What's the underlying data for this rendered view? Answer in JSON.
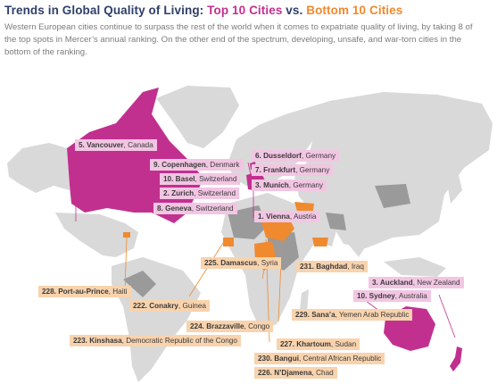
{
  "title": {
    "prefix": "Trends in Global Quality of Living: ",
    "top": "Top 10 Cities",
    "mid": " vs. ",
    "bottom": "Bottom 10 Cities"
  },
  "subtitle": "Western European cities continue to surpass the rest of the world when it comes to expatriate quality of living, by taking 8 of the top spots in Mercer’s annual ranking. On the other end of the spectrum, developing, unsafe, and war-torn cities in the bottom of the ranking.",
  "colors": {
    "top_accent": "#c2308f",
    "bottom_accent": "#ef8a2e",
    "top_label_bg": "#f2c6e3",
    "bottom_label_bg": "#f8d3ad",
    "land": "#d9d9d9"
  },
  "top_cities": [
    {
      "rank": "5.",
      "city": "Vancouver",
      "country": "Canada"
    },
    {
      "rank": "9.",
      "city": "Copenhagen",
      "country": "Denmark"
    },
    {
      "rank": "10.",
      "city": "Basel",
      "country": "Switzerland"
    },
    {
      "rank": "2.",
      "city": "Zurich",
      "country": "Switzerland"
    },
    {
      "rank": "8.",
      "city": "Geneva",
      "country": "Switzerland"
    },
    {
      "rank": "6.",
      "city": "Dusseldorf",
      "country": "Germany"
    },
    {
      "rank": "7.",
      "city": "Frankfurt",
      "country": "Germany"
    },
    {
      "rank": "3.",
      "city": "Munich",
      "country": "Germany"
    },
    {
      "rank": "1.",
      "city": "Vienna",
      "country": "Austria"
    },
    {
      "rank": "3.",
      "city": "Auckland",
      "country": "New Zealand"
    },
    {
      "rank": "10.",
      "city": "Sydney",
      "country": "Australia"
    }
  ],
  "bottom_cities": [
    {
      "rank": "225.",
      "city": "Damascus",
      "country": "Syria"
    },
    {
      "rank": "231.",
      "city": "Baghdad",
      "country": "Iraq"
    },
    {
      "rank": "228.",
      "city": "Port-au-Prince",
      "country": "Haiti"
    },
    {
      "rank": "222.",
      "city": "Conakry",
      "country": "Guinea"
    },
    {
      "rank": "224.",
      "city": "Brazzaville",
      "country": "Congo"
    },
    {
      "rank": "229.",
      "city": "Sana’a",
      "country": "Yemen Arab Republic"
    },
    {
      "rank": "223.",
      "city": "Kinshasa",
      "country": "Democratic Republic of the Congo"
    },
    {
      "rank": "227.",
      "city": "Khartoum",
      "country": "Sudan"
    },
    {
      "rank": "230.",
      "city": "Bangui",
      "country": "Central African Republic"
    },
    {
      "rank": "226.",
      "city": "N’Djamena",
      "country": "Chad"
    }
  ]
}
